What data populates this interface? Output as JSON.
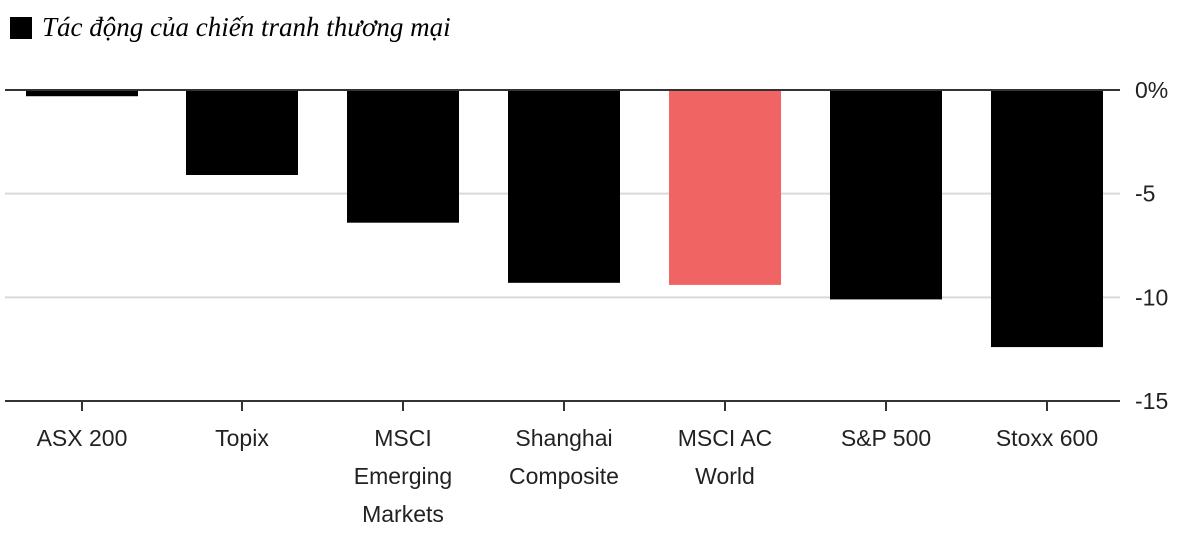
{
  "chart_data": {
    "type": "bar",
    "title": "Tác động của chiến tranh thương mại",
    "categories": [
      "ASX 200",
      "Topix",
      "MSCI Emerging Markets",
      "Shanghai Composite",
      "MSCI AC World",
      "S&P 500",
      "Stoxx 600"
    ],
    "category_lines": [
      [
        "ASX 200"
      ],
      [
        "Topix"
      ],
      [
        "MSCI",
        "Emerging",
        "Markets"
      ],
      [
        "Shanghai",
        "Composite"
      ],
      [
        "MSCI AC",
        "World"
      ],
      [
        "S&P 500"
      ],
      [
        "Stoxx 600"
      ]
    ],
    "values": [
      -0.3,
      -4.1,
      -6.4,
      -9.3,
      -9.4,
      -10.1,
      -12.4
    ],
    "ylim": [
      -15,
      0
    ],
    "yticks": [
      0,
      -5,
      -10,
      -15
    ],
    "ytick_labels": [
      "0%",
      "-5",
      "-10",
      "-15"
    ],
    "xlabel": "",
    "ylabel": "",
    "grid": true,
    "legend": "top-left",
    "highlight_category": "MSCI AC World"
  },
  "colors": {
    "bar": "#000000",
    "highlight": "#f06464",
    "grid": "#d9d9d9",
    "axis": "#333333"
  }
}
